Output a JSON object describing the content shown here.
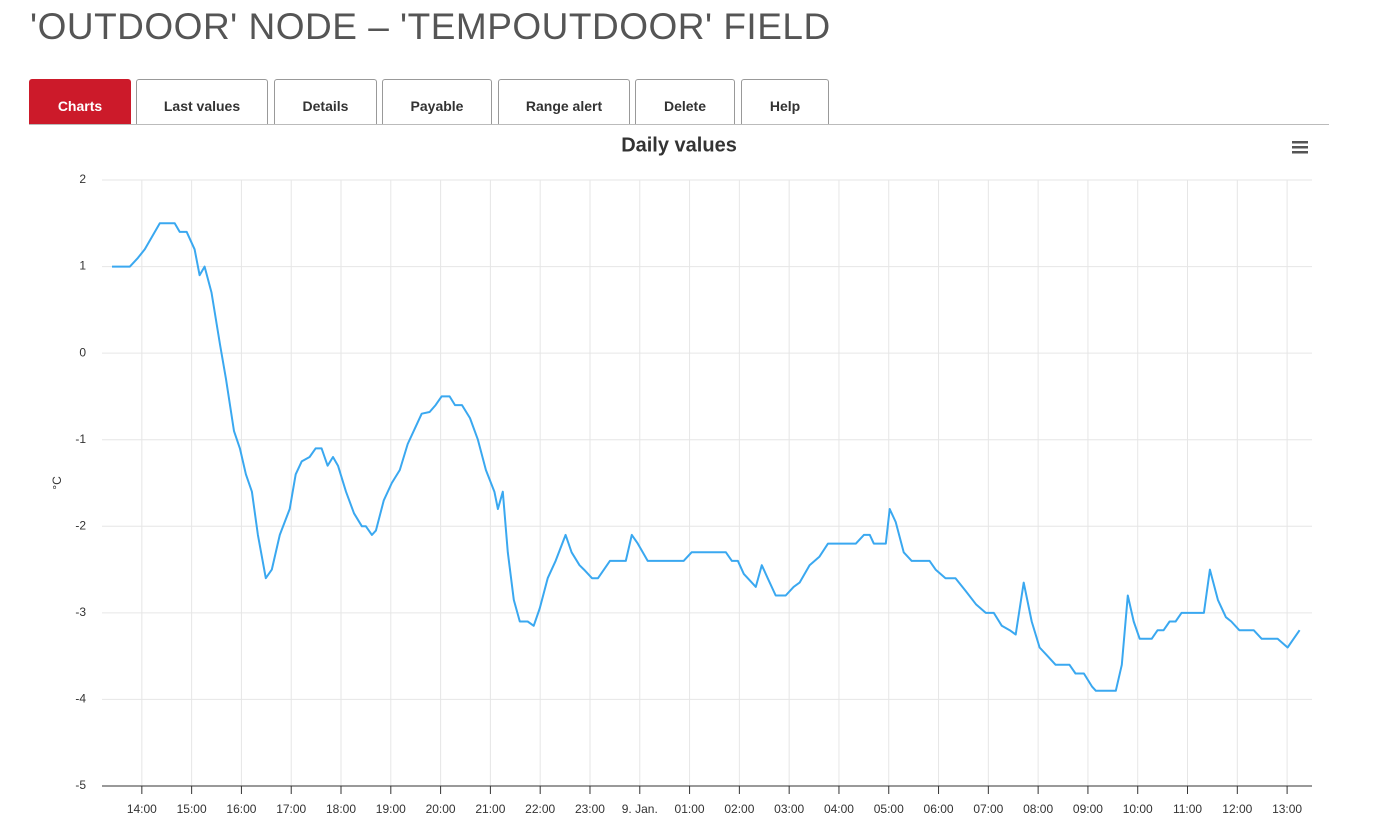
{
  "header": {
    "title": "'OUTDOOR' NODE – 'TEMPOUTDOOR' FIELD"
  },
  "tabs": [
    "Charts",
    "Last values",
    "Details",
    "Payable",
    "Range alert",
    "Delete",
    "Help"
  ],
  "chart_data": {
    "type": "line",
    "title": "Daily values",
    "ylabel": "°C",
    "xlim": [
      13.2,
      37.5
    ],
    "ylim": [
      -5,
      2
    ],
    "yticks": [
      -5,
      -4,
      -3,
      -2,
      -1,
      0,
      1,
      2
    ],
    "xticks": [
      {
        "value": 14,
        "label": "14:00"
      },
      {
        "value": 15,
        "label": "15:00"
      },
      {
        "value": 16,
        "label": "16:00"
      },
      {
        "value": 17,
        "label": "17:00"
      },
      {
        "value": 18,
        "label": "18:00"
      },
      {
        "value": 19,
        "label": "19:00"
      },
      {
        "value": 20,
        "label": "20:00"
      },
      {
        "value": 21,
        "label": "21:00"
      },
      {
        "value": 22,
        "label": "22:00"
      },
      {
        "value": 23,
        "label": "23:00"
      },
      {
        "value": 24,
        "label": "9. Jan."
      },
      {
        "value": 25,
        "label": "01:00"
      },
      {
        "value": 26,
        "label": "02:00"
      },
      {
        "value": 27,
        "label": "03:00"
      },
      {
        "value": 28,
        "label": "04:00"
      },
      {
        "value": 29,
        "label": "05:00"
      },
      {
        "value": 30,
        "label": "06:00"
      },
      {
        "value": 31,
        "label": "07:00"
      },
      {
        "value": 32,
        "label": "08:00"
      },
      {
        "value": 33,
        "label": "09:00"
      },
      {
        "value": 34,
        "label": "10:00"
      },
      {
        "value": 35,
        "label": "11:00"
      },
      {
        "value": 36,
        "label": "12:00"
      },
      {
        "value": 37,
        "label": "13:00"
      }
    ],
    "grid": true,
    "color": "#3aa8f0",
    "x": [
      13.4,
      13.76,
      13.92,
      14.06,
      14.36,
      14.66,
      14.76,
      14.9,
      15.06,
      15.16,
      15.26,
      15.4,
      15.57,
      15.69,
      15.85,
      15.97,
      16.09,
      16.21,
      16.33,
      16.49,
      16.61,
      16.77,
      16.97,
      17.09,
      17.21,
      17.37,
      17.49,
      17.61,
      17.73,
      17.84,
      17.94,
      18.1,
      18.26,
      18.42,
      18.5,
      18.62,
      18.7,
      18.86,
      19.02,
      19.18,
      19.34,
      19.5,
      19.62,
      19.78,
      19.9,
      20.02,
      20.18,
      20.29,
      20.43,
      20.59,
      20.75,
      20.91,
      21.08,
      21.15,
      21.25,
      21.35,
      21.47,
      21.59,
      21.75,
      21.87,
      21.99,
      22.15,
      22.31,
      22.51,
      22.63,
      22.79,
      22.88,
      23.04,
      23.16,
      23.4,
      23.72,
      23.84,
      23.96,
      24.16,
      24.88,
      25.04,
      25.73,
      25.85,
      25.97,
      26.09,
      26.25,
      26.33,
      26.45,
      26.57,
      26.73,
      26.93,
      27.09,
      27.21,
      27.41,
      27.61,
      27.78,
      28.34,
      28.5,
      28.62,
      28.7,
      28.94,
      29.02,
      29.14,
      29.3,
      29.46,
      29.82,
      29.94,
      30.14,
      30.34,
      30.55,
      30.75,
      30.95,
      31.11,
      31.27,
      31.43,
      31.55,
      31.71,
      31.87,
      32.03,
      32.19,
      32.35,
      32.63,
      32.75,
      32.92,
      33.08,
      33.16,
      33.56,
      33.68,
      33.8,
      33.92,
      34.04,
      34.28,
      34.4,
      34.52,
      34.64,
      34.76,
      34.88,
      35.33,
      35.45,
      35.61,
      35.77,
      35.88,
      36.04,
      36.33,
      36.49,
      36.81,
      37.01,
      37.13,
      37.25
    ],
    "values": [
      1,
      1,
      1.1,
      1.2,
      1.5,
      1.5,
      1.4,
      1.4,
      1.2,
      0.9,
      1.0,
      0.7,
      0.1,
      -0.3,
      -0.9,
      -1.1,
      -1.4,
      -1.6,
      -2.1,
      -2.6,
      -2.5,
      -2.1,
      -1.8,
      -1.4,
      -1.25,
      -1.2,
      -1.1,
      -1.1,
      -1.3,
      -1.2,
      -1.3,
      -1.6,
      -1.85,
      -2.0,
      -2.0,
      -2.1,
      -2.05,
      -1.7,
      -1.5,
      -1.35,
      -1.05,
      -0.85,
      -0.7,
      -0.68,
      -0.6,
      -0.5,
      -0.5,
      -0.6,
      -0.6,
      -0.75,
      -1.0,
      -1.35,
      -1.6,
      -1.8,
      -1.6,
      -2.3,
      -2.85,
      -3.1,
      -3.1,
      -3.15,
      -2.95,
      -2.6,
      -2.4,
      -2.1,
      -2.3,
      -2.45,
      -2.5,
      -2.6,
      -2.6,
      -2.4,
      -2.4,
      -2.1,
      -2.2,
      -2.4,
      -2.4,
      -2.3,
      -2.3,
      -2.4,
      -2.4,
      -2.55,
      -2.65,
      -2.7,
      -2.45,
      -2.6,
      -2.8,
      -2.8,
      -2.7,
      -2.65,
      -2.45,
      -2.35,
      -2.2,
      -2.2,
      -2.1,
      -2.1,
      -2.2,
      -2.2,
      -1.8,
      -1.95,
      -2.3,
      -2.4,
      -2.4,
      -2.5,
      -2.6,
      -2.6,
      -2.75,
      -2.9,
      -3.0,
      -3.0,
      -3.15,
      -3.2,
      -3.25,
      -2.65,
      -3.1,
      -3.4,
      -3.5,
      -3.6,
      -3.6,
      -3.7,
      -3.7,
      -3.85,
      -3.9,
      -3.9,
      -3.6,
      -2.8,
      -3.1,
      -3.3,
      -3.3,
      -3.2,
      -3.2,
      -3.1,
      -3.1,
      -3.0,
      -3.0,
      -2.5,
      -2.85,
      -3.05,
      -3.1,
      -3.2,
      -3.2,
      -3.3,
      -3.3,
      -3.4,
      -3.3,
      -3.2
    ]
  }
}
